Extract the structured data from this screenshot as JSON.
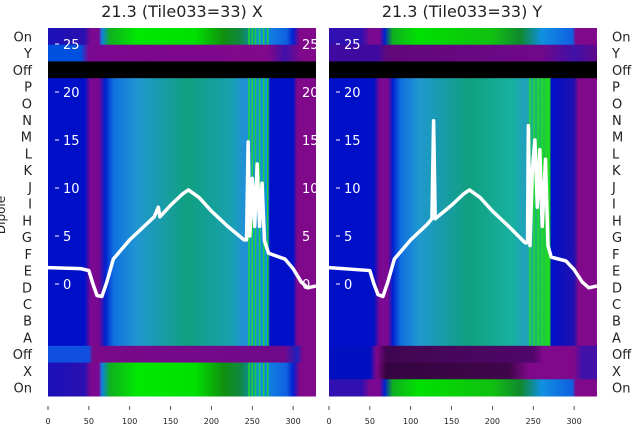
{
  "chart_data": [
    {
      "type": "heatmap",
      "title": "21.3 (Tile033=33) X",
      "ylabel": "Dipole",
      "row_labels": [
        "On",
        "Y",
        "Off",
        "P",
        "O",
        "N",
        "M",
        "L",
        "K",
        "J",
        "I",
        "H",
        "G",
        "F",
        "E",
        "D",
        "C",
        "B",
        "A",
        "Off",
        "X",
        "On"
      ],
      "xlim": [
        0,
        328
      ],
      "xticks": [
        "0",
        "50",
        "100",
        "150",
        "200",
        "250",
        "300"
      ],
      "ylim_overlay": [
        -1.3,
        27
      ],
      "yticks": [
        "0",
        "5",
        "10",
        "15",
        "20",
        "25"
      ],
      "row_profiles": {
        "on": [
          [
            0,
            "#1a10b8"
          ],
          [
            45,
            "#2a10b0"
          ],
          [
            52,
            "#7a0890"
          ],
          [
            62,
            "#7a0890"
          ],
          [
            66,
            "#1080e0"
          ],
          [
            76,
            "#10b020"
          ],
          [
            110,
            "#00e800"
          ],
          [
            180,
            "#00e000"
          ],
          [
            215,
            "#109010"
          ],
          [
            235,
            "#108840"
          ],
          [
            258,
            "#1090e0"
          ],
          [
            292,
            "#1060e0"
          ],
          [
            300,
            "#0020d0"
          ],
          [
            308,
            "#80088a"
          ],
          [
            328,
            "#80088a"
          ]
        ],
        "y": [
          [
            0,
            "#0050e0"
          ],
          [
            40,
            "#0050e0"
          ],
          [
            50,
            "#7a0890"
          ],
          [
            270,
            "#80088a"
          ],
          [
            290,
            "#4010a8"
          ],
          [
            310,
            "#80088a"
          ],
          [
            328,
            "#80088a"
          ]
        ],
        "off_top": [
          [
            0,
            "#000000"
          ],
          [
            328,
            "#000000"
          ]
        ],
        "dipole": [
          [
            0,
            "#0010c8"
          ],
          [
            45,
            "#0010c8"
          ],
          [
            52,
            "#7a0890"
          ],
          [
            62,
            "#7a0890"
          ],
          [
            70,
            "#0020d0"
          ],
          [
            80,
            "#1070e0"
          ],
          [
            110,
            "#2098d0"
          ],
          [
            170,
            "#10a080"
          ],
          [
            225,
            "#18a0b0"
          ],
          [
            240,
            "#2090d8"
          ],
          [
            268,
            "#1090e0"
          ],
          [
            272,
            "#0010c8"
          ],
          [
            300,
            "#0010c8"
          ],
          [
            305,
            "#80088a"
          ],
          [
            328,
            "#80088a"
          ]
        ],
        "off_bottom": [
          [
            0,
            "#1050e0"
          ],
          [
            50,
            "#1050e0"
          ],
          [
            55,
            "#7a0a8a"
          ],
          [
            290,
            "#70088a"
          ],
          [
            305,
            "#2020c0"
          ],
          [
            312,
            "#80088a"
          ],
          [
            328,
            "#80088a"
          ]
        ]
      },
      "row_profile_map": [
        "on",
        "y",
        "off_top",
        "dipole",
        "dipole",
        "dipole",
        "dipole",
        "dipole",
        "dipole",
        "dipole",
        "dipole",
        "dipole",
        "dipole",
        "dipole",
        "dipole",
        "dipole",
        "dipole",
        "dipole",
        "dipole",
        "off_bottom",
        "on",
        "on"
      ],
      "stripes": [
        245,
        249,
        253,
        258,
        263,
        268
      ],
      "line": [
        [
          0,
          1.7
        ],
        [
          40,
          1.6
        ],
        [
          50,
          1.4
        ],
        [
          55,
          0
        ],
        [
          60,
          -1.2
        ],
        [
          66,
          -1.3
        ],
        [
          72,
          0.2
        ],
        [
          80,
          2.6
        ],
        [
          100,
          4.6
        ],
        [
          120,
          6.2
        ],
        [
          130,
          7
        ],
        [
          135,
          8
        ],
        [
          137,
          7
        ],
        [
          150,
          8.2
        ],
        [
          165,
          9.4
        ],
        [
          172,
          9.8
        ],
        [
          185,
          9
        ],
        [
          200,
          7.6
        ],
        [
          220,
          6
        ],
        [
          240,
          4.6
        ],
        [
          243,
          4.6
        ],
        [
          245,
          14.8
        ],
        [
          247,
          5
        ],
        [
          250,
          11
        ],
        [
          253,
          6
        ],
        [
          256,
          12.5
        ],
        [
          259,
          6
        ],
        [
          262,
          10.5
        ],
        [
          265,
          4.5
        ],
        [
          270,
          3.2
        ],
        [
          290,
          2.6
        ],
        [
          300,
          1.6
        ],
        [
          310,
          0.2
        ],
        [
          318,
          -0.4
        ],
        [
          328,
          -0.2
        ]
      ]
    },
    {
      "type": "heatmap",
      "title": "21.3 (Tile033=33) Y",
      "row_labels": [
        "On",
        "Y",
        "Off",
        "P",
        "O",
        "N",
        "M",
        "L",
        "K",
        "J",
        "I",
        "H",
        "G",
        "F",
        "E",
        "D",
        "C",
        "B",
        "A",
        "Off",
        "X",
        "On"
      ],
      "xlim": [
        0,
        328
      ],
      "xticks": [
        "0",
        "50",
        "100",
        "150",
        "200",
        "250",
        "300"
      ],
      "ylim_overlay": [
        -1.3,
        27
      ],
      "yticks": [
        "0",
        "5",
        "10",
        "15",
        "20",
        "25"
      ],
      "row_profiles": {
        "on": [
          [
            0,
            "#3010b0"
          ],
          [
            40,
            "#3010b0"
          ],
          [
            50,
            "#7a0890"
          ],
          [
            62,
            "#7a0890"
          ],
          [
            68,
            "#0020d0"
          ],
          [
            78,
            "#10b020"
          ],
          [
            110,
            "#00e000"
          ],
          [
            200,
            "#10c010"
          ],
          [
            235,
            "#108830"
          ],
          [
            260,
            "#1090e0"
          ],
          [
            298,
            "#1060e0"
          ],
          [
            302,
            "#80088a"
          ],
          [
            328,
            "#80088a"
          ]
        ],
        "y": [
          [
            0,
            "#400aa0"
          ],
          [
            60,
            "#400aa0"
          ],
          [
            70,
            "#60087a"
          ],
          [
            260,
            "#70088a"
          ],
          [
            300,
            "#4010a8"
          ],
          [
            328,
            "#60088a"
          ]
        ],
        "off_top": [
          [
            0,
            "#000000"
          ],
          [
            328,
            "#000000"
          ]
        ],
        "dipole": [
          [
            0,
            "#0010c8"
          ],
          [
            55,
            "#0010c8"
          ],
          [
            62,
            "#7a0890"
          ],
          [
            72,
            "#7a0890"
          ],
          [
            78,
            "#0020d0"
          ],
          [
            88,
            "#1070e0"
          ],
          [
            110,
            "#2098d0"
          ],
          [
            170,
            "#10a080"
          ],
          [
            225,
            "#18b0a0"
          ],
          [
            240,
            "#20a0c0"
          ],
          [
            270,
            "#20d020"
          ],
          [
            272,
            "#0010c8"
          ],
          [
            300,
            "#2010b0"
          ],
          [
            305,
            "#80088a"
          ],
          [
            328,
            "#80088a"
          ]
        ],
        "off_bottom": [
          [
            0,
            "#0010c0"
          ],
          [
            50,
            "#0010c0"
          ],
          [
            58,
            "#80088a"
          ],
          [
            70,
            "#400650"
          ],
          [
            250,
            "#50066a"
          ],
          [
            262,
            "#80088a"
          ],
          [
            300,
            "#80088a"
          ],
          [
            310,
            "#4010a8"
          ],
          [
            328,
            "#4010a8"
          ]
        ],
        "x": [
          [
            0,
            "#0010c0"
          ],
          [
            50,
            "#0010c0"
          ],
          [
            58,
            "#80088a"
          ],
          [
            70,
            "#350440"
          ],
          [
            220,
            "#40064a"
          ],
          [
            245,
            "#80088a"
          ],
          [
            300,
            "#80088a"
          ],
          [
            310,
            "#4010a8"
          ],
          [
            328,
            "#4010a8"
          ]
        ]
      },
      "row_profile_map": [
        "on",
        "y",
        "off_top",
        "dipole",
        "dipole",
        "dipole",
        "dipole",
        "dipole",
        "dipole",
        "dipole",
        "dipole",
        "dipole",
        "dipole",
        "dipole",
        "dipole",
        "dipole",
        "dipole",
        "dipole",
        "dipole",
        "off_bottom",
        "x",
        "on"
      ],
      "stripes": [
        245,
        250,
        255,
        260,
        265,
        268
      ],
      "line": [
        [
          0,
          1.7
        ],
        [
          50,
          1.4
        ],
        [
          55,
          0
        ],
        [
          60,
          -1.1
        ],
        [
          66,
          -1.3
        ],
        [
          72,
          0.2
        ],
        [
          80,
          2.6
        ],
        [
          100,
          4.6
        ],
        [
          120,
          6.2
        ],
        [
          126,
          6.8
        ],
        [
          128,
          17
        ],
        [
          130,
          6.8
        ],
        [
          150,
          8.2
        ],
        [
          165,
          9.4
        ],
        [
          172,
          9.8
        ],
        [
          185,
          9
        ],
        [
          200,
          7.6
        ],
        [
          220,
          6
        ],
        [
          240,
          4.3
        ],
        [
          243,
          4.3
        ],
        [
          244,
          16.5
        ],
        [
          246,
          4
        ],
        [
          249,
          12
        ],
        [
          252,
          15
        ],
        [
          255,
          8
        ],
        [
          258,
          14
        ],
        [
          261,
          6
        ],
        [
          265,
          13
        ],
        [
          268,
          4
        ],
        [
          272,
          2.8
        ],
        [
          290,
          2.4
        ],
        [
          300,
          1.5
        ],
        [
          310,
          0.2
        ],
        [
          318,
          -0.4
        ],
        [
          328,
          -0.2
        ]
      ]
    }
  ]
}
